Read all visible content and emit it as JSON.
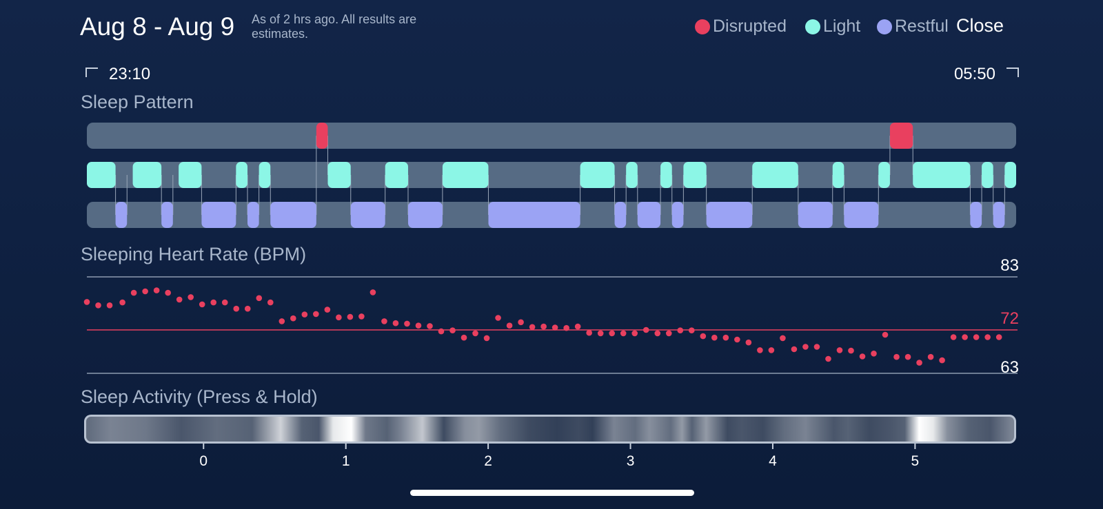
{
  "header": {
    "date_range": "Aug 8 - Aug 9",
    "as_of": "As of 2 hrs ago. All results are estimates.",
    "close_label": "Close"
  },
  "legend": [
    {
      "label": "Disrupted",
      "color": "#e9405f"
    },
    {
      "label": "Light",
      "color": "#8cf6e6"
    },
    {
      "label": "Restful",
      "color": "#9ba3f4"
    }
  ],
  "time_range": {
    "start": "23:10",
    "end": "05:50"
  },
  "sleep_pattern": {
    "title": "Sleep Pattern",
    "segments": [
      {
        "stage": "light",
        "start": 0,
        "end": 0.25
      },
      {
        "stage": "restful",
        "start": 0.25,
        "end": 0.35
      },
      {
        "stage": "light",
        "start": 0.4,
        "end": 0.65
      },
      {
        "stage": "restful",
        "start": 0.65,
        "end": 0.75
      },
      {
        "stage": "light",
        "start": 0.8,
        "end": 1.0
      },
      {
        "stage": "restful",
        "start": 1.0,
        "end": 1.3
      },
      {
        "stage": "light",
        "start": 1.3,
        "end": 1.4
      },
      {
        "stage": "restful",
        "start": 1.4,
        "end": 1.5
      },
      {
        "stage": "light",
        "start": 1.5,
        "end": 1.6
      },
      {
        "stage": "restful",
        "start": 1.6,
        "end": 2.0
      },
      {
        "stage": "disrupted",
        "start": 2.0,
        "end": 2.1
      },
      {
        "stage": "light",
        "start": 2.1,
        "end": 2.3
      },
      {
        "stage": "restful",
        "start": 2.3,
        "end": 2.6
      },
      {
        "stage": "light",
        "start": 2.6,
        "end": 2.8
      },
      {
        "stage": "restful",
        "start": 2.8,
        "end": 3.1
      },
      {
        "stage": "light",
        "start": 3.1,
        "end": 3.5
      },
      {
        "stage": "restful",
        "start": 3.5,
        "end": 4.3
      },
      {
        "stage": "light",
        "start": 4.3,
        "end": 4.6
      },
      {
        "stage": "restful",
        "start": 4.6,
        "end": 4.7
      },
      {
        "stage": "light",
        "start": 4.7,
        "end": 4.8
      },
      {
        "stage": "restful",
        "start": 4.8,
        "end": 5.0
      },
      {
        "stage": "light",
        "start": 5.0,
        "end": 5.1
      },
      {
        "stage": "restful",
        "start": 5.1,
        "end": 5.2
      },
      {
        "stage": "light",
        "start": 5.2,
        "end": 5.4
      },
      {
        "stage": "restful",
        "start": 5.4,
        "end": 5.8
      },
      {
        "stage": "light",
        "start": 5.8,
        "end": 6.2
      },
      {
        "stage": "restful",
        "start": 6.2,
        "end": 6.5
      },
      {
        "stage": "light",
        "start": 6.5,
        "end": 6.6
      },
      {
        "stage": "restful",
        "start": 6.6,
        "end": 6.9
      },
      {
        "stage": "light",
        "start": 6.9,
        "end": 7.0
      },
      {
        "stage": "disrupted",
        "start": 7.0,
        "end": 7.2
      },
      {
        "stage": "light",
        "start": 7.2,
        "end": 7.7
      },
      {
        "stage": "restful",
        "start": 7.7,
        "end": 7.8
      },
      {
        "stage": "light",
        "start": 7.8,
        "end": 7.9
      },
      {
        "stage": "restful",
        "start": 7.9,
        "end": 8.0
      },
      {
        "stage": "light",
        "start": 8.0,
        "end": 8.1
      }
    ]
  },
  "heart_rate": {
    "title": "Sleeping Heart Rate (BPM)",
    "max_label": "83",
    "avg_label": "72",
    "min_label": "63"
  },
  "sleep_activity": {
    "title": "Sleep Activity (Press & Hold)",
    "x_ticks": [
      "0",
      "1",
      "2",
      "3",
      "4",
      "5"
    ]
  },
  "colors": {
    "disrupted": "#e9405f",
    "light": "#8cf6e6",
    "restful": "#9ba3f4",
    "track": "#566b84"
  },
  "chart_data": [
    {
      "type": "scatter",
      "title": "Sleeping Heart Rate (BPM)",
      "ylim": [
        63,
        83
      ],
      "reference_lines": [
        83,
        72,
        63
      ],
      "x": [
        -0.82,
        -0.74,
        -0.66,
        -0.57,
        -0.49,
        -0.41,
        -0.33,
        -0.25,
        -0.17,
        -0.09,
        -0.01,
        0.07,
        0.15,
        0.23,
        0.31,
        0.39,
        0.47,
        0.55,
        0.63,
        0.71,
        0.79,
        0.87,
        0.95,
        1.03,
        1.11,
        1.19,
        1.27,
        1.35,
        1.43,
        1.51,
        1.59,
        1.67,
        1.75,
        1.83,
        1.91,
        1.99,
        2.07,
        2.15,
        2.23,
        2.31,
        2.39,
        2.47,
        2.55,
        2.63,
        2.71,
        2.79,
        2.87,
        2.95,
        3.03,
        3.11,
        3.19,
        3.27,
        3.35,
        3.43,
        3.51,
        3.59,
        3.67,
        3.75,
        3.83,
        3.91,
        3.99,
        4.07,
        4.15,
        4.23,
        4.31,
        4.39,
        4.47,
        4.55,
        4.63,
        4.71,
        4.79,
        4.87,
        4.95,
        5.03,
        5.11,
        5.19,
        5.27,
        5.35,
        5.43,
        5.51,
        5.59
      ],
      "y": [
        77.8,
        77.1,
        77.1,
        77.7,
        79.7,
        80.0,
        80.2,
        79.7,
        78.3,
        78.8,
        77.3,
        77.7,
        77.7,
        76.4,
        76.4,
        78.6,
        77.7,
        73.8,
        74.4,
        75.2,
        75.3,
        76.2,
        74.6,
        74.7,
        74.8,
        79.8,
        73.8,
        73.4,
        73.3,
        72.9,
        72.8,
        71.7,
        71.9,
        70.4,
        71.3,
        70.3,
        74.5,
        72.9,
        73.6,
        72.6,
        72.7,
        72.5,
        72.4,
        72.7,
        71.4,
        71.3,
        71.3,
        71.3,
        71.3,
        72.0,
        71.3,
        71.3,
        71.9,
        71.9,
        70.7,
        70.4,
        70.4,
        70.0,
        69.4,
        67.8,
        67.8,
        70.3,
        68.0,
        68.5,
        68.5,
        66.0,
        67.8,
        67.7,
        66.5,
        67.1,
        71.0,
        66.4,
        66.4,
        65.2,
        66.4,
        65.7,
        70.5,
        70.5,
        70.5,
        70.5,
        70.5
      ]
    },
    {
      "type": "heatmap",
      "title": "Sleep Activity (Press & Hold)",
      "x_ticks": [
        "0",
        "1",
        "2",
        "3",
        "4",
        "5"
      ],
      "xlim": [
        -0.82,
        5.72
      ],
      "x": [
        -0.8,
        -0.65,
        -0.4,
        -0.15,
        0.1,
        0.35,
        0.45,
        0.55,
        0.7,
        0.82,
        0.92,
        1.05,
        1.15,
        1.3,
        1.4,
        1.55,
        1.7,
        1.85,
        1.95,
        2.1,
        2.3,
        2.5,
        2.65,
        2.75,
        2.9,
        3.05,
        3.15,
        3.3,
        3.38,
        3.45,
        3.55,
        3.7,
        3.8,
        3.95,
        4.1,
        4.25,
        4.35,
        4.45,
        4.55,
        4.7,
        4.85,
        4.95,
        5.05,
        5.15,
        5.25,
        5.4,
        5.55,
        5.7
      ],
      "intensity": [
        0.35,
        0.45,
        0.4,
        0.25,
        0.35,
        0.3,
        0.55,
        0.8,
        0.3,
        0.25,
        0.9,
        1.0,
        0.4,
        0.3,
        0.45,
        0.75,
        0.2,
        0.5,
        0.55,
        0.35,
        0.2,
        0.15,
        0.2,
        0.15,
        0.45,
        0.35,
        0.5,
        0.35,
        0.55,
        0.3,
        0.55,
        0.2,
        0.25,
        0.2,
        0.35,
        0.45,
        0.35,
        0.25,
        0.3,
        0.2,
        0.25,
        0.3,
        1.0,
        0.9,
        0.5,
        0.3,
        0.25,
        0.45
      ]
    }
  ]
}
